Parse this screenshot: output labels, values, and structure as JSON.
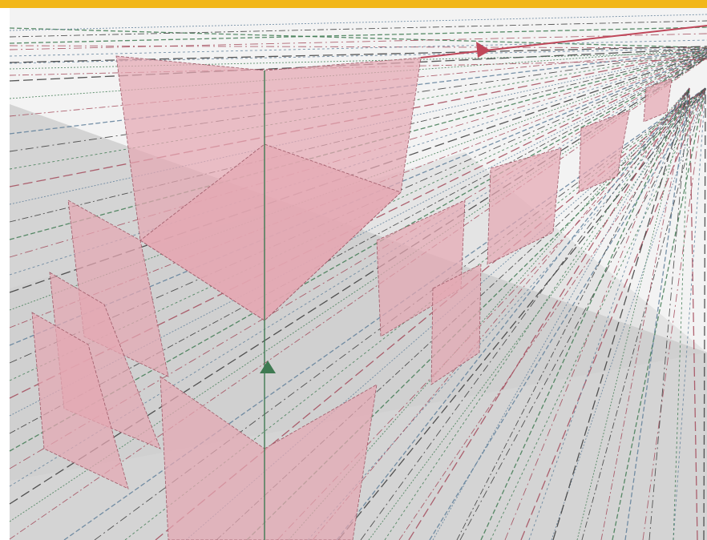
{
  "app": {
    "window_frame_color": "#f2b71a"
  },
  "canvas": {
    "background_color": "#f3f3f3",
    "ground_color": "#c9c9c9",
    "face_color": "#e4a7b3",
    "face_stroke": "#9e5a68",
    "guide_colors": {
      "green": "#3f7a52",
      "red": "#a34a5a",
      "blue": "#5f7f9a",
      "dark": "#3a3a3a"
    }
  },
  "gizmo": {
    "x_axis_icon": "red-arrow-right",
    "y_axis_icon": "green-arrow-up",
    "x_axis_color": "#c0475a",
    "y_axis_color": "#3f7a52"
  }
}
